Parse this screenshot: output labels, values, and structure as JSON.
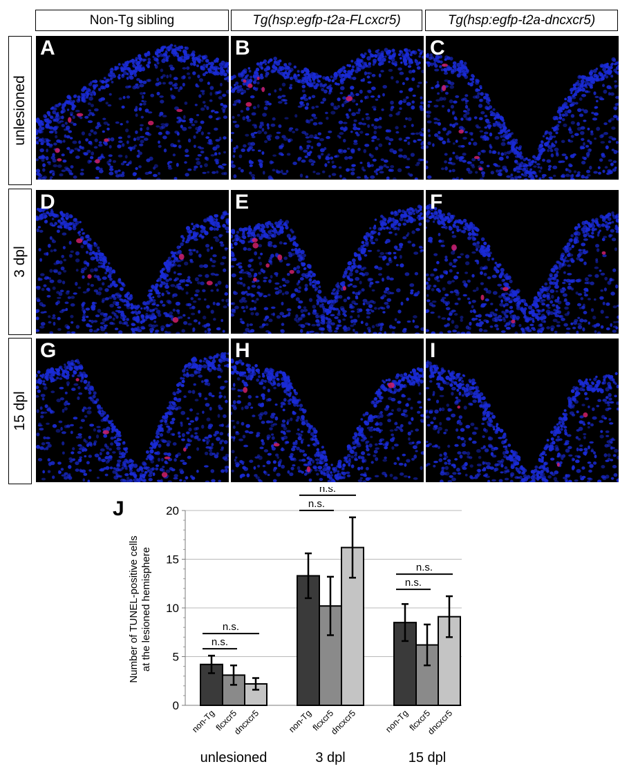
{
  "column_headers": [
    "Non-Tg sibling",
    "Tg(hsp:egfp-t2a-FLcxcr5)",
    "Tg(hsp:egfp-t2a-dncxcr5)"
  ],
  "row_headers": [
    "unlesioned",
    "3 dpl",
    "15 dpl"
  ],
  "panel_letters": [
    "A",
    "B",
    "C",
    "D",
    "E",
    "F",
    "G",
    "H",
    "I"
  ],
  "colors": {
    "nuclei_blue": "#1a2bd6",
    "tunel_red": "#d0206a",
    "panel_background": "#000000",
    "bar_non_tg": "#3a3a3a",
    "bar_flcxcr5": "#8a8a8a",
    "bar_dncxcr5": "#c4c4c4"
  },
  "chart_panel_letter": "J",
  "chart_data": {
    "type": "bar",
    "ylabel_lines": [
      "Number of TUNEL-positive cells",
      "at the lesioned hemisphere"
    ],
    "ylim": [
      0,
      20
    ],
    "yticks": [
      0,
      5,
      10,
      15,
      20
    ],
    "grid": true,
    "group_labels": [
      "unlesioned",
      "3 dpl",
      "15 dpl"
    ],
    "category_labels": [
      "non-Tg",
      "flcxcr5",
      "dncxcr5"
    ],
    "groups": [
      {
        "name": "unlesioned",
        "values": [
          4.2,
          3.1,
          2.2
        ],
        "errors": [
          0.9,
          1.0,
          0.6
        ]
      },
      {
        "name": "3 dpl",
        "values": [
          13.3,
          10.2,
          16.2
        ],
        "errors": [
          2.3,
          3.0,
          3.1
        ]
      },
      {
        "name": "15 dpl",
        "values": [
          8.5,
          6.2,
          9.1
        ],
        "errors": [
          1.9,
          2.1,
          2.1
        ]
      }
    ],
    "significance_label": "n.s."
  }
}
